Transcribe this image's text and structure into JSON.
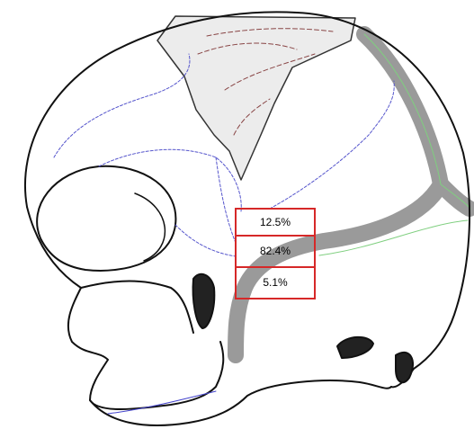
{
  "boxes": [
    {
      "label": "12.5%"
    },
    {
      "label": "82.4%"
    },
    {
      "label": "5.1%"
    }
  ]
}
